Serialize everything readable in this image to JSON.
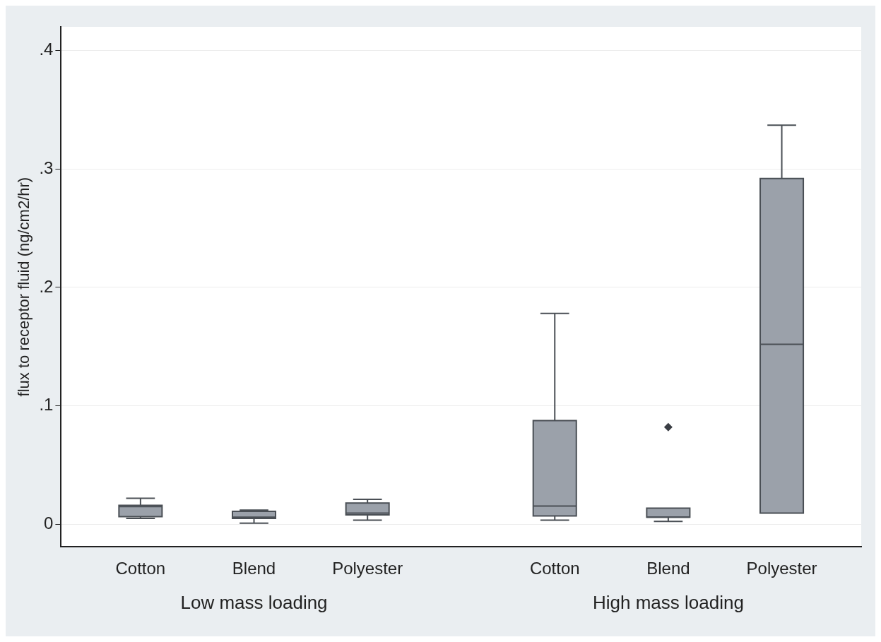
{
  "chart_data": {
    "type": "box",
    "ylabel": "flux to receptor fluid (ng/cm2/hr)",
    "categories": [
      "Cotton",
      "Blend",
      "Polyester",
      "Cotton",
      "Blend",
      "Polyester"
    ],
    "boxes": [
      {
        "low": 0.005,
        "q1": 0.0065,
        "median": 0.015,
        "q3": 0.016,
        "high": 0.022
      },
      {
        "low": 0.001,
        "q1": 0.005,
        "median": 0.006,
        "q3": 0.011,
        "high": 0.012
      },
      {
        "low": 0.0035,
        "q1": 0.008,
        "median": 0.0095,
        "q3": 0.018,
        "high": 0.021
      },
      {
        "low": 0.0035,
        "q1": 0.007,
        "median": 0.0154,
        "q3": 0.0876,
        "high": 0.178
      },
      {
        "low": 0.0024,
        "q1": 0.006,
        "median": 0.006,
        "q3": 0.0136,
        "high": 0.0136,
        "outliers": [
          0.082
        ]
      },
      {
        "low": 0.0095,
        "q1": 0.0095,
        "median": 0.152,
        "q3": 0.292,
        "high": 0.337
      }
    ],
    "color": "#9ba1aa",
    "ylim": [
      -0.019,
      0.42
    ],
    "yticks": [
      0,
      {
        "value": 0.1,
        "label": ".1"
      },
      {
        "value": 0.2,
        "label": ".2"
      },
      {
        "value": 0.3,
        "label": ".3"
      },
      {
        "value": 0.4,
        "label": ".4"
      }
    ],
    "grid": "y",
    "legend": false,
    "annotations": [
      "Low mass loading",
      "High mass loading"
    ]
  }
}
